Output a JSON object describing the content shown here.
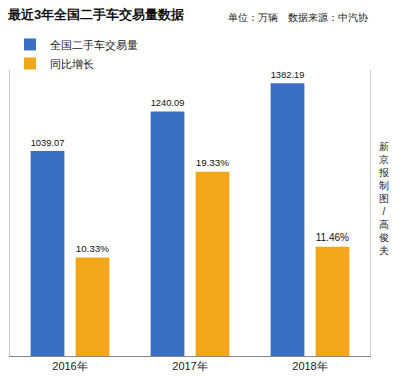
{
  "chart_data": {
    "type": "bar",
    "title": "最近3年全国二手车交易量数据",
    "categories": [
      "2016年",
      "2017年",
      "2018年"
    ],
    "series": [
      {
        "name": "全国二手车交易量",
        "color": "#3b6fc6",
        "values": [
          1039.07,
          1240.09,
          1382.19
        ]
      },
      {
        "name": "同比增长",
        "color": "#f2a71b",
        "axis": "y2",
        "values": [
          10.33,
          19.33,
          11.46
        ],
        "value_labels": [
          "10.33%",
          "19.33%",
          "11.46%"
        ]
      }
    ],
    "ylim": [
      0,
      1450
    ],
    "yticks": [
      0
    ],
    "y2lim": [
      0,
      30
    ],
    "y2ticks": [
      0
    ],
    "data_labels": true,
    "tick_labels": "x",
    "grid": false,
    "legend": "top-left",
    "annotations": [
      "单位：万辆",
      "数据来源：中汽协",
      "新京报制图/高俊夫"
    ]
  }
}
